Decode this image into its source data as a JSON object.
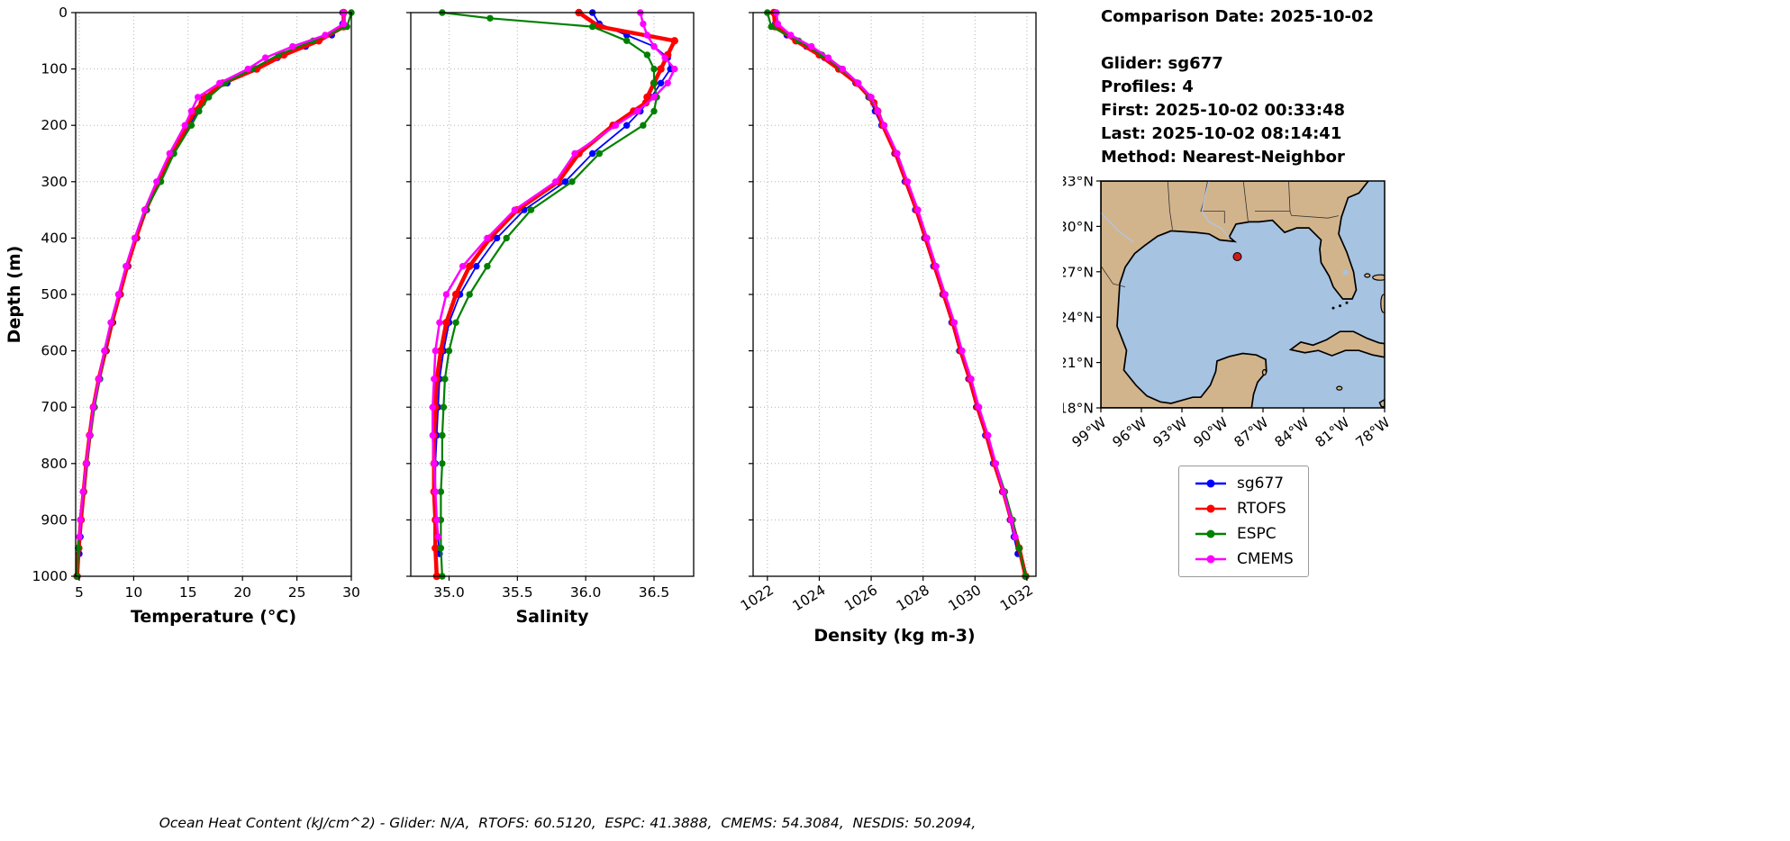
{
  "info_panel": {
    "comparison_date": "Comparison Date: 2025-10-02",
    "glider": "Glider: sg677",
    "profiles": "Profiles: 4",
    "first": "First: 2025-10-02 00:33:48",
    "last": "Last: 2025-10-02 08:14:41",
    "method": "Method: Nearest-Neighbor"
  },
  "caption": "Ocean Heat Content (kJ/cm^2) - Glider: N/A,  RTOFS: 60.5120,  ESPC: 41.3888,  CMEMS: 54.3084,  NESDIS: 50.2094,",
  "legend": {
    "entries": [
      {
        "label": "sg677",
        "color": "#0000ff"
      },
      {
        "label": "RTOFS",
        "color": "#ff0000"
      },
      {
        "label": "ESPC",
        "color": "#008000"
      },
      {
        "label": "CMEMS",
        "color": "#ff00ff"
      }
    ]
  },
  "map": {
    "lat_tick_labels": [
      "33°N",
      "30°N",
      "27°N",
      "24°N",
      "21°N",
      "18°N"
    ],
    "lat_tick_values": [
      33,
      30,
      27,
      24,
      21,
      18
    ],
    "lon_tick_labels": [
      "99°W",
      "96°W",
      "93°W",
      "90°W",
      "87°W",
      "84°W",
      "81°W",
      "78°W"
    ],
    "lon_tick_values": [
      99,
      96,
      93,
      90,
      87,
      84,
      81,
      78
    ],
    "extent": {
      "lon_w_min": 78,
      "lon_w_max": 99,
      "lat_min": 18,
      "lat_max": 33
    },
    "marker": {
      "lon_w": 88.9,
      "lat": 28.0,
      "color": "#cf1b1b"
    },
    "land_color": "#d2b48c",
    "ocean_color": "#a6c3e1"
  },
  "chart_data": [
    {
      "type": "line",
      "panel": "temperature",
      "xlabel": "Temperature (°C)",
      "ylabel": "Depth (m)",
      "xlim": [
        4.67,
        30.0
      ],
      "ylim": [
        0,
        1000
      ],
      "xticks": [
        5,
        10,
        15,
        20,
        25,
        30
      ],
      "xtick_labels": [
        "5",
        "10",
        "15",
        "20",
        "25",
        "30"
      ],
      "xtick_rotation": 0,
      "yticks": [
        0,
        100,
        200,
        300,
        400,
        500,
        600,
        700,
        800,
        900,
        1000
      ],
      "ytick_labels": [
        "0",
        "100",
        "200",
        "300",
        "400",
        "500",
        "600",
        "700",
        "800",
        "900",
        "1000"
      ],
      "grid": true,
      "legend_position": "none",
      "series": [
        {
          "name": "sg677",
          "color": "#0000ff",
          "lw": 1.8,
          "depths": [
            0,
            20,
            40,
            60,
            80,
            100,
            125,
            150,
            175,
            200,
            250,
            300,
            350,
            400,
            450,
            500,
            550,
            600,
            650,
            700,
            750,
            800,
            850,
            900,
            930,
            960
          ],
          "values": [
            29.2,
            29.2,
            28.2,
            25.8,
            23.2,
            21.0,
            18.6,
            16.4,
            15.9,
            15.1,
            13.6,
            12.4,
            11.2,
            10.3,
            9.5,
            8.8,
            8.1,
            7.5,
            6.9,
            6.4,
            6.0,
            5.7,
            5.4,
            5.2,
            5.1,
            5.0
          ]
        },
        {
          "name": "RTOFS",
          "color": "#ff0000",
          "lw": 4.5,
          "depths": [
            0,
            25,
            50,
            75,
            100,
            125,
            150,
            160,
            175,
            200,
            250,
            300,
            350,
            400,
            450,
            500,
            550,
            600,
            650,
            700,
            750,
            800,
            850,
            900,
            950,
            1000
          ],
          "values": [
            29.3,
            29.3,
            27.0,
            23.8,
            21.3,
            18.2,
            16.6,
            16.3,
            15.6,
            14.9,
            13.5,
            12.3,
            11.1,
            10.2,
            9.4,
            8.7,
            8.0,
            7.4,
            6.8,
            6.3,
            5.95,
            5.65,
            5.4,
            5.15,
            4.95,
            4.8
          ]
        },
        {
          "name": "ESPC",
          "color": "#008000",
          "lw": 2.2,
          "depths": [
            0,
            25,
            50,
            75,
            100,
            125,
            150,
            175,
            200,
            250,
            300,
            350,
            400,
            450,
            500,
            550,
            600,
            650,
            700,
            750,
            800,
            850,
            900,
            950,
            1000
          ],
          "values": [
            30.0,
            29.6,
            26.5,
            23.3,
            20.9,
            18.4,
            16.9,
            16.0,
            15.3,
            13.7,
            12.5,
            11.1,
            10.1,
            9.3,
            8.6,
            7.95,
            7.35,
            6.85,
            6.4,
            6.0,
            5.7,
            5.4,
            5.1,
            4.9,
            4.8
          ]
        },
        {
          "name": "CMEMS",
          "color": "#ff00ff",
          "lw": 2.5,
          "depths": [
            0,
            20,
            40,
            60,
            80,
            100,
            125,
            150,
            175,
            200,
            250,
            300,
            350,
            400,
            450,
            500,
            550,
            600,
            650,
            700,
            750,
            800,
            850,
            900,
            930
          ],
          "values": [
            29.3,
            29.3,
            27.6,
            24.6,
            22.1,
            20.5,
            17.9,
            15.9,
            15.3,
            14.7,
            13.3,
            12.1,
            11.0,
            10.1,
            9.3,
            8.6,
            7.9,
            7.3,
            6.8,
            6.3,
            5.95,
            5.65,
            5.35,
            5.1,
            5.0
          ]
        }
      ]
    },
    {
      "type": "line",
      "panel": "salinity",
      "xlabel": "Salinity",
      "ylabel": "Depth (m)",
      "xlim": [
        34.72,
        36.79
      ],
      "ylim": [
        0,
        1000
      ],
      "xticks": [
        35.0,
        35.5,
        36.0,
        36.5
      ],
      "xtick_labels": [
        "35.0",
        "35.5",
        "36.0",
        "36.5"
      ],
      "xtick_rotation": 0,
      "yticks": [
        0,
        100,
        200,
        300,
        400,
        500,
        600,
        700,
        800,
        900,
        1000
      ],
      "ytick_labels": [],
      "grid": true,
      "legend_position": "none",
      "series": [
        {
          "name": "sg677",
          "color": "#0000ff",
          "lw": 1.8,
          "depths": [
            0,
            20,
            40,
            60,
            80,
            100,
            125,
            150,
            175,
            200,
            250,
            300,
            350,
            400,
            450,
            500,
            550,
            600,
            650,
            700,
            750,
            800,
            850,
            900,
            930,
            960
          ],
          "values": [
            36.05,
            36.1,
            36.3,
            36.5,
            36.6,
            36.62,
            36.55,
            36.48,
            36.4,
            36.3,
            36.05,
            35.85,
            35.55,
            35.35,
            35.2,
            35.08,
            35.0,
            34.96,
            34.93,
            34.92,
            34.91,
            34.9,
            34.9,
            34.91,
            34.92,
            34.93
          ]
        },
        {
          "name": "RTOFS",
          "color": "#ff0000",
          "lw": 4.5,
          "depths": [
            0,
            25,
            50,
            75,
            100,
            125,
            150,
            160,
            175,
            200,
            250,
            300,
            350,
            400,
            450,
            500,
            550,
            600,
            650,
            700,
            750,
            800,
            850,
            900,
            950,
            1000
          ],
          "values": [
            35.95,
            36.1,
            36.65,
            36.6,
            36.55,
            36.5,
            36.45,
            36.44,
            36.35,
            36.2,
            35.95,
            35.8,
            35.5,
            35.3,
            35.15,
            35.05,
            34.98,
            34.94,
            34.91,
            34.9,
            34.89,
            34.89,
            34.89,
            34.9,
            34.9,
            34.91
          ]
        },
        {
          "name": "ESPC",
          "color": "#008000",
          "lw": 2.2,
          "depths": [
            0,
            10,
            25,
            50,
            75,
            100,
            125,
            150,
            175,
            200,
            250,
            300,
            350,
            400,
            450,
            500,
            550,
            600,
            650,
            700,
            750,
            800,
            850,
            900,
            950,
            1000
          ],
          "values": [
            34.95,
            35.3,
            36.05,
            36.3,
            36.45,
            36.5,
            36.5,
            36.52,
            36.5,
            36.42,
            36.1,
            35.9,
            35.6,
            35.42,
            35.28,
            35.15,
            35.05,
            35.0,
            34.97,
            34.96,
            34.95,
            34.95,
            34.94,
            34.94,
            34.94,
            34.95
          ]
        },
        {
          "name": "CMEMS",
          "color": "#ff00ff",
          "lw": 2.5,
          "depths": [
            0,
            20,
            40,
            60,
            80,
            100,
            125,
            150,
            175,
            200,
            250,
            300,
            350,
            400,
            450,
            500,
            550,
            600,
            650,
            700,
            750,
            800,
            850,
            900,
            930
          ],
          "values": [
            36.4,
            36.42,
            36.45,
            36.5,
            36.58,
            36.65,
            36.6,
            36.5,
            36.38,
            36.22,
            35.92,
            35.78,
            35.48,
            35.28,
            35.1,
            34.98,
            34.93,
            34.9,
            34.89,
            34.88,
            34.88,
            34.89,
            34.9,
            34.91,
            34.92
          ]
        }
      ]
    },
    {
      "type": "line",
      "panel": "density",
      "xlabel": "Density (kg m-3)",
      "ylabel": "Depth (m)",
      "xlim": [
        1021.45,
        1032.35
      ],
      "ylim": [
        0,
        1000
      ],
      "xticks": [
        1022,
        1024,
        1026,
        1028,
        1030,
        1032
      ],
      "xtick_labels": [
        "1022",
        "1024",
        "1026",
        "1028",
        "1030",
        "1032"
      ],
      "xtick_rotation": -32,
      "yticks": [
        0,
        100,
        200,
        300,
        400,
        500,
        600,
        700,
        800,
        900,
        1000
      ],
      "ytick_labels": [],
      "grid": true,
      "legend_position": "none",
      "series": [
        {
          "name": "sg677",
          "color": "#0000ff",
          "lw": 1.8,
          "depths": [
            0,
            20,
            40,
            60,
            80,
            100,
            125,
            150,
            175,
            200,
            250,
            300,
            350,
            400,
            450,
            500,
            550,
            600,
            650,
            700,
            750,
            800,
            850,
            900,
            930,
            960
          ],
          "values": [
            1022.3,
            1022.3,
            1022.75,
            1023.5,
            1024.2,
            1024.8,
            1025.4,
            1025.9,
            1026.15,
            1026.4,
            1026.9,
            1027.3,
            1027.7,
            1028.05,
            1028.4,
            1028.75,
            1029.1,
            1029.4,
            1029.75,
            1030.05,
            1030.4,
            1030.7,
            1031.05,
            1031.35,
            1031.5,
            1031.65
          ]
        },
        {
          "name": "RTOFS",
          "color": "#ff0000",
          "lw": 4.5,
          "depths": [
            0,
            25,
            50,
            75,
            100,
            125,
            150,
            160,
            175,
            200,
            250,
            300,
            350,
            400,
            450,
            500,
            550,
            600,
            650,
            700,
            750,
            800,
            850,
            900,
            950,
            1000
          ],
          "values": [
            1022.25,
            1022.3,
            1023.1,
            1024.0,
            1024.75,
            1025.45,
            1025.95,
            1026.1,
            1026.25,
            1026.45,
            1026.95,
            1027.35,
            1027.75,
            1028.1,
            1028.45,
            1028.8,
            1029.15,
            1029.45,
            1029.8,
            1030.1,
            1030.45,
            1030.75,
            1031.1,
            1031.4,
            1031.7,
            1031.95
          ]
        },
        {
          "name": "ESPC",
          "color": "#008000",
          "lw": 2.2,
          "depths": [
            0,
            25,
            50,
            75,
            100,
            125,
            150,
            175,
            200,
            250,
            300,
            350,
            400,
            450,
            500,
            550,
            600,
            650,
            700,
            750,
            800,
            850,
            900,
            950,
            1000
          ],
          "values": [
            1022.0,
            1022.15,
            1023.2,
            1024.1,
            1024.85,
            1025.5,
            1025.95,
            1026.25,
            1026.5,
            1027.0,
            1027.4,
            1027.8,
            1028.15,
            1028.5,
            1028.85,
            1029.2,
            1029.5,
            1029.85,
            1030.15,
            1030.5,
            1030.8,
            1031.15,
            1031.45,
            1031.7,
            1031.95
          ]
        },
        {
          "name": "CMEMS",
          "color": "#ff00ff",
          "lw": 2.5,
          "depths": [
            0,
            20,
            40,
            60,
            80,
            100,
            125,
            150,
            175,
            200,
            250,
            300,
            350,
            400,
            450,
            500,
            550,
            600,
            650,
            700,
            750,
            800,
            850,
            900,
            930
          ],
          "values": [
            1022.35,
            1022.4,
            1022.9,
            1023.7,
            1024.35,
            1024.9,
            1025.5,
            1026.0,
            1026.25,
            1026.5,
            1027.0,
            1027.4,
            1027.8,
            1028.15,
            1028.5,
            1028.85,
            1029.2,
            1029.5,
            1029.85,
            1030.15,
            1030.5,
            1030.8,
            1031.1,
            1031.4,
            1031.55
          ]
        }
      ]
    }
  ]
}
